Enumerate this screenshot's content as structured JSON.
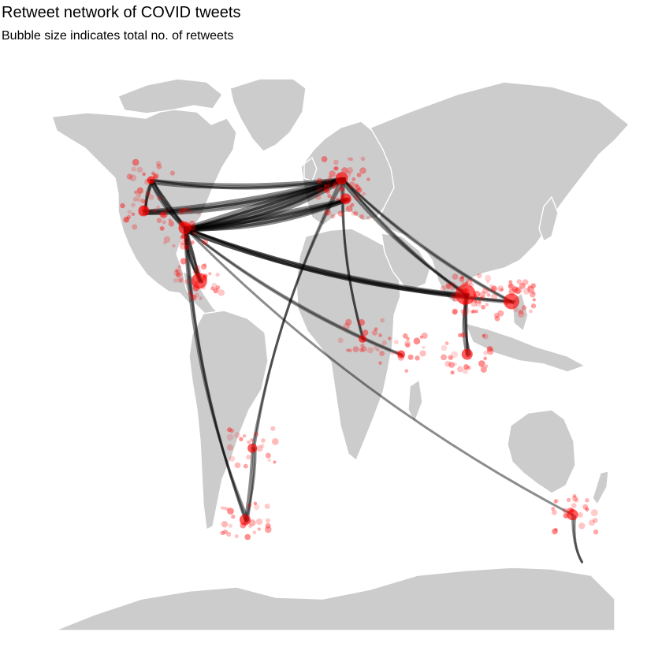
{
  "title": "Retweet network of COVID tweets",
  "subtitle": "Bubble size indicates total no. of retweets",
  "colors": {
    "land": "#cccccc",
    "border": "#ffffff",
    "edge": "#000000",
    "node": "#ff0000",
    "background": "#ffffff"
  },
  "map": {
    "projection": "equirectangular",
    "bubble_encoding": "total no. of retweets",
    "hubs": [
      {
        "region": "western-north-america",
        "lon": -118.0,
        "lat": 46.5,
        "size": 3
      },
      {
        "region": "north-america-central",
        "lon": -97.0,
        "lat": 32.5,
        "size": 6
      },
      {
        "region": "north-america-west-coast",
        "lon": -122.5,
        "lat": 37.5,
        "size": 5
      },
      {
        "region": "gulf-of-mexico",
        "lon": -88.0,
        "lat": 17.0,
        "size": 8
      },
      {
        "region": "western-europe",
        "lon": 0.5,
        "lat": 47.0,
        "size": 6
      },
      {
        "region": "northern-europe",
        "lon": 3.0,
        "lat": 41.0,
        "size": 5
      },
      {
        "region": "south-asia",
        "lon": 77.5,
        "lat": 13.0,
        "size": 11
      },
      {
        "region": "southern-india",
        "lon": 78.5,
        "lat": -4.5,
        "size": 5
      },
      {
        "region": "east-asia",
        "lon": 106.0,
        "lat": 11.0,
        "size": 8
      },
      {
        "region": "southern-south-america",
        "lon": -59.5,
        "lat": -53.0,
        "size": 5
      },
      {
        "region": "south-america-central",
        "lon": -55.0,
        "lat": -32.0,
        "size": 4
      },
      {
        "region": "australia",
        "lon": 144.0,
        "lat": -51.5,
        "size": 5
      },
      {
        "region": "east-africa",
        "lon": 37.5,
        "lat": -4.5,
        "size": 3
      },
      {
        "region": "central-africa",
        "lon": 13.5,
        "lat": 0.0,
        "size": 3
      }
    ],
    "retweet_links": [
      [
        "western-north-america",
        "western-europe",
        4
      ],
      [
        "western-north-america",
        "north-america-central",
        5
      ],
      [
        "western-north-america",
        "north-america-west-coast",
        3
      ],
      [
        "north-america-central",
        "western-europe",
        12
      ],
      [
        "north-america-central",
        "northern-europe",
        8
      ],
      [
        "north-america-west-coast",
        "western-europe",
        6
      ],
      [
        "north-america-central",
        "south-asia",
        4
      ],
      [
        "north-america-central",
        "east-asia",
        3
      ],
      [
        "north-america-central",
        "gulf-of-mexico",
        6
      ],
      [
        "north-america-central",
        "southern-south-america",
        3
      ],
      [
        "north-america-central",
        "australia",
        1
      ],
      [
        "north-america-central",
        "east-africa",
        2
      ],
      [
        "western-europe",
        "south-asia",
        3
      ],
      [
        "western-europe",
        "east-asia",
        2
      ],
      [
        "western-europe",
        "south-america-central",
        2
      ],
      [
        "western-europe",
        "central-africa",
        2
      ],
      [
        "south-asia",
        "southern-india",
        4
      ],
      [
        "australia",
        "australia",
        2
      ],
      [
        "southern-south-america",
        "south-america-central",
        3
      ]
    ]
  }
}
